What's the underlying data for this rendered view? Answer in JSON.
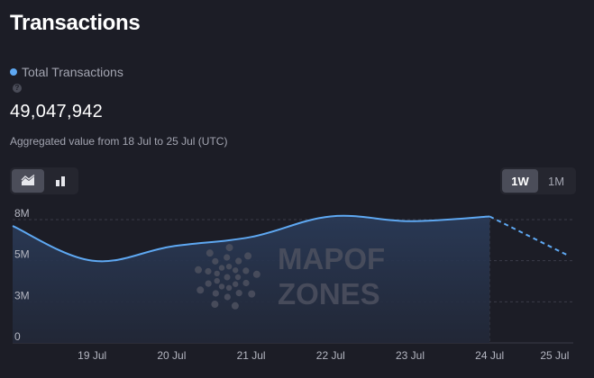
{
  "header": {
    "title": "Transactions"
  },
  "legend": {
    "label": "Total Transactions",
    "help_icon": "question-circle-icon"
  },
  "stats": {
    "total_value": "49,047,942",
    "aggregated_note": "Aggregated value from 18 Jul to 25 Jul (UTC)"
  },
  "chart_type_toggle": [
    {
      "icon": "area-chart-icon",
      "active": true
    },
    {
      "icon": "bar-chart-icon",
      "active": false
    }
  ],
  "range_toggle": [
    {
      "label": "1W",
      "active": true
    },
    {
      "label": "1M",
      "active": false
    }
  ],
  "watermark": {
    "line1": "MAPOF",
    "line2": "ZONES"
  },
  "colors": {
    "line": "#5ea8f2",
    "background": "#1c1d26",
    "grid": "#3a3c48"
  },
  "chart_data": {
    "type": "area",
    "series": [
      {
        "name": "Total Transactions",
        "x": [
          "18 Jul",
          "19 Jul",
          "20 Jul",
          "21 Jul",
          "22 Jul",
          "23 Jul",
          "24 Jul",
          "25 Jul"
        ],
        "values": [
          7400000,
          5200000,
          6100000,
          6700000,
          8000000,
          7700000,
          8000000,
          5500000
        ],
        "last_segment_projected": true
      }
    ],
    "x_tick_labels": [
      "19 Jul",
      "20 Jul",
      "21 Jul",
      "22 Jul",
      "23 Jul",
      "24 Jul",
      "25 Jul"
    ],
    "y_ticks": [
      {
        "value": 0,
        "label": "0"
      },
      {
        "value": 2600000,
        "label": "3M"
      },
      {
        "value": 5200000,
        "label": "5M"
      },
      {
        "value": 7800000,
        "label": "8M"
      }
    ],
    "ylim": [
      0,
      7800000
    ],
    "grid": true
  }
}
